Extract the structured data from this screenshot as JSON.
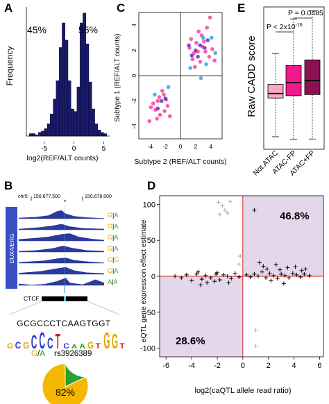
{
  "panels": {
    "A": {
      "label": "A",
      "chart_data": {
        "type": "bar",
        "ylabel": "Frequency",
        "xlabel": "log2(REF/ALT counts)",
        "xticks": [
          "-5",
          "0",
          "5"
        ],
        "x": [
          -7.25,
          -6.75,
          -6.25,
          -5.75,
          -5.25,
          -4.75,
          -4.25,
          -3.75,
          -3.25,
          -2.75,
          -2.25,
          -1.75,
          -1.25,
          -0.75,
          -0.25,
          0.25,
          0.75,
          1.25,
          1.75,
          2.25,
          2.75,
          3.25,
          3.75,
          4.25,
          4.75,
          5.25
        ],
        "values": [
          2,
          2,
          1,
          3,
          4,
          6,
          10,
          18,
          30,
          45,
          72,
          92,
          78,
          45,
          22,
          20,
          40,
          92,
          100,
          75,
          44,
          22,
          10,
          5,
          3,
          2
        ],
        "xlim": [
          -8,
          6
        ],
        "pct_left": "45%",
        "pct_right": "55%"
      }
    },
    "B": {
      "label": "B",
      "chrom": "chr5:",
      "coord_left": "150,677,500",
      "coord_right": "150,678,000",
      "track_label": "DUX4/ERG",
      "track_alleles": [
        {
          "first": "G",
          "sep": "|",
          "second": "A"
        },
        {
          "first": "G",
          "sep": "|",
          "second": "A"
        },
        {
          "first": "G",
          "sep": "|",
          "second": "A"
        },
        {
          "first": "G",
          "sep": "|",
          "second": "A"
        },
        {
          "first": "G",
          "sep": "|",
          "second": "G"
        },
        {
          "first": "G",
          "sep": "|",
          "second": "A"
        },
        {
          "first": "A",
          "sep": "|",
          "second": "A"
        }
      ],
      "ctcf_label": "CTCF",
      "sequence": "GCGCCCTCAAGTGGT",
      "snp_ref": "G",
      "snp_sep": "/",
      "snp_alt": "A",
      "snp_id": "rs3926389",
      "pie_pct": "82%",
      "pie_values": [
        0.82,
        0.18
      ],
      "colors": {
        "dark_blue": "#1a1a6e",
        "track_blue": "#3040b0",
        "g_allele": "#f5b800",
        "a_allele": "#2ca02c"
      }
    },
    "C": {
      "label": "C",
      "chart_data": {
        "type": "scatter",
        "xlabel": "Subtype 2 (REF/ALT counts)",
        "ylabel": "Subtype 1 (REF/ALT counts)",
        "xticks": [
          "-4",
          "-2",
          "0",
          "2",
          "4"
        ],
        "yticks": [
          "-4",
          "-2",
          "0",
          "2",
          "4"
        ],
        "xlim": [
          -5.5,
          5.5
        ],
        "ylim": [
          -5,
          5
        ],
        "series": [
          {
            "color": "#ff3f9f",
            "points": [
              [
                1.2,
                2.2
              ],
              [
                2.3,
                1.9
              ],
              [
                3.1,
                2.7
              ],
              [
                3.8,
                1.5
              ],
              [
                2.8,
                3.2
              ],
              [
                1.6,
                1.3
              ],
              [
                4.2,
                2.1
              ],
              [
                2.1,
                2.6
              ],
              [
                3.5,
                3.8
              ],
              [
                3.9,
                4.6
              ],
              [
                2.6,
                1.1
              ],
              [
                1.9,
                0.7
              ],
              [
                3.3,
                1.9
              ],
              [
                4.5,
                1.2
              ],
              [
                1.4,
                2.9
              ],
              [
                2.4,
                3.5
              ],
              [
                -2.8,
                -1.7
              ],
              [
                -3.6,
                -2.2
              ],
              [
                -2.1,
                -2.8
              ],
              [
                -3.1,
                -3.4
              ],
              [
                -4.1,
                -3.6
              ],
              [
                -2.4,
                -1.2
              ],
              [
                -1.7,
                -2.4
              ],
              [
                -3.3,
                -2.7
              ],
              [
                -1.9,
                -1.9
              ],
              [
                -2.7,
                -3.1
              ],
              [
                -3.9,
                -2.5
              ],
              [
                -1.4,
                -3.2
              ],
              [
                -2.2,
                -1.5
              ],
              [
                -3.0,
                -2.0
              ],
              [
                2.9,
                2.3
              ],
              [
                1.8,
                1.8
              ]
            ]
          },
          {
            "color": "#6a2cc9",
            "points": [
              [
                2.0,
                2.0
              ],
              [
                2.6,
                2.4
              ],
              [
                1.5,
                1.6
              ],
              [
                3.2,
                2.2
              ],
              [
                -2.5,
                -2.0
              ],
              [
                -3.0,
                -2.6
              ],
              [
                -2.0,
                -1.8
              ],
              [
                2.3,
                1.5
              ],
              [
                1.1,
                2.4
              ],
              [
                3.6,
                2.8
              ]
            ]
          },
          {
            "color": "#2aa9e8",
            "points": [
              [
                4.6,
                1.8
              ],
              [
                3.4,
                0.9
              ],
              [
                4.1,
                3.0
              ],
              [
                -1.6,
                -0.9
              ],
              [
                -3.4,
                -1.5
              ],
              [
                1.3,
                0.6
              ],
              [
                2.7,
                -0.2
              ],
              [
                3.0,
                3.0
              ]
            ]
          }
        ]
      }
    },
    "D": {
      "label": "D",
      "chart_data": {
        "type": "scatter",
        "xlabel": "log2(caQTL allele read ratio)",
        "ylabel": "eQTL gene expression effect estimate",
        "xticks": [
          "-6",
          "-4",
          "-2",
          "0",
          "2",
          "4",
          "6"
        ],
        "yticks": [
          "-100",
          "-50",
          "0",
          "50",
          "100"
        ],
        "xlim": [
          -6.5,
          6.3
        ],
        "ylim": [
          -112,
          112
        ],
        "pct_top_right": "46.8%",
        "pct_bottom_left": "28.6%",
        "series": [
          {
            "color": "#000000",
            "points": [
              [
                -5.3,
                0
              ],
              [
                -4.8,
                -2
              ],
              [
                -4.4,
                2
              ],
              [
                -4.0,
                -6
              ],
              [
                -3.6,
                3
              ],
              [
                -3.2,
                -4
              ],
              [
                -2.9,
                1
              ],
              [
                -2.5,
                -2
              ],
              [
                -2.1,
                3
              ],
              [
                -1.8,
                -5
              ],
              [
                -1.5,
                2
              ],
              [
                -1.2,
                0
              ],
              [
                -0.9,
                -3
              ],
              [
                -0.6,
                4
              ],
              [
                -0.3,
                -1
              ],
              [
                -3.3,
                -12
              ],
              [
                -2.8,
                -9
              ],
              [
                -2.2,
                -7
              ],
              [
                -1.1,
                -9
              ],
              [
                -3.5,
                6
              ],
              [
                -2.0,
                5
              ],
              [
                0.3,
                2
              ],
              [
                0.6,
                -1
              ],
              [
                0.9,
                3
              ],
              [
                1.2,
                0
              ],
              [
                1.5,
                6
              ],
              [
                1.8,
                -2
              ],
              [
                2.1,
                4
              ],
              [
                2.4,
                1
              ],
              [
                2.7,
                -3
              ],
              [
                3.0,
                3
              ],
              [
                3.3,
                1
              ],
              [
                3.6,
                -2
              ],
              [
                3.9,
                4
              ],
              [
                4.2,
                2
              ],
              [
                4.5,
                -1
              ],
              [
                4.8,
                3
              ],
              [
                5.2,
                1
              ],
              [
                1.3,
                19
              ],
              [
                1.6,
                14
              ],
              [
                1.9,
                10
              ],
              [
                2.6,
                16
              ],
              [
                2.9,
                9
              ],
              [
                3.5,
                12
              ],
              [
                4.1,
                13
              ],
              [
                4.6,
                8
              ],
              [
                0.9,
                92
              ],
              [
                4.9,
                10
              ],
              [
                2.2,
                -6
              ],
              [
                3.2,
                -10
              ]
            ]
          },
          {
            "color": "#a8a8a8",
            "points": [
              [
                -1.9,
                103
              ],
              [
                -1.6,
                98
              ],
              [
                -1.4,
                92
              ],
              [
                -1.2,
                88
              ],
              [
                -1.8,
                86
              ],
              [
                -1.0,
                104
              ],
              [
                1.0,
                -75
              ],
              [
                1.0,
                -97
              ],
              [
                -0.2,
                28
              ],
              [
                -0.3,
                17
              ]
            ]
          }
        ]
      }
    },
    "E": {
      "label": "E",
      "chart_data": {
        "type": "box",
        "ylabel": "Raw CADD score",
        "categories": [
          "Not.ATAC",
          "ATAC-FP",
          "ATAC+FP"
        ],
        "ylim": [
          -1.0,
          1.5
        ],
        "boxes": [
          {
            "whisker_low": -0.78,
            "q1": -0.1,
            "median": -0.02,
            "q3": 0.14,
            "whisker_high": 0.68,
            "color": "#f7a8c4"
          },
          {
            "whisker_low": -0.83,
            "q1": -0.06,
            "median": 0.17,
            "q3": 0.47,
            "whisker_high": 1.29,
            "color": "#ee1b8c"
          },
          {
            "whisker_low": -0.82,
            "q1": -0.04,
            "median": 0.21,
            "q3": 0.57,
            "whisker_high": 1.43,
            "color": "#8b1252"
          }
        ],
        "sig1": {
          "text": "P < 2x10",
          "sup": "-16"
        },
        "sig2": {
          "text": "P = 0.0485"
        }
      }
    }
  }
}
